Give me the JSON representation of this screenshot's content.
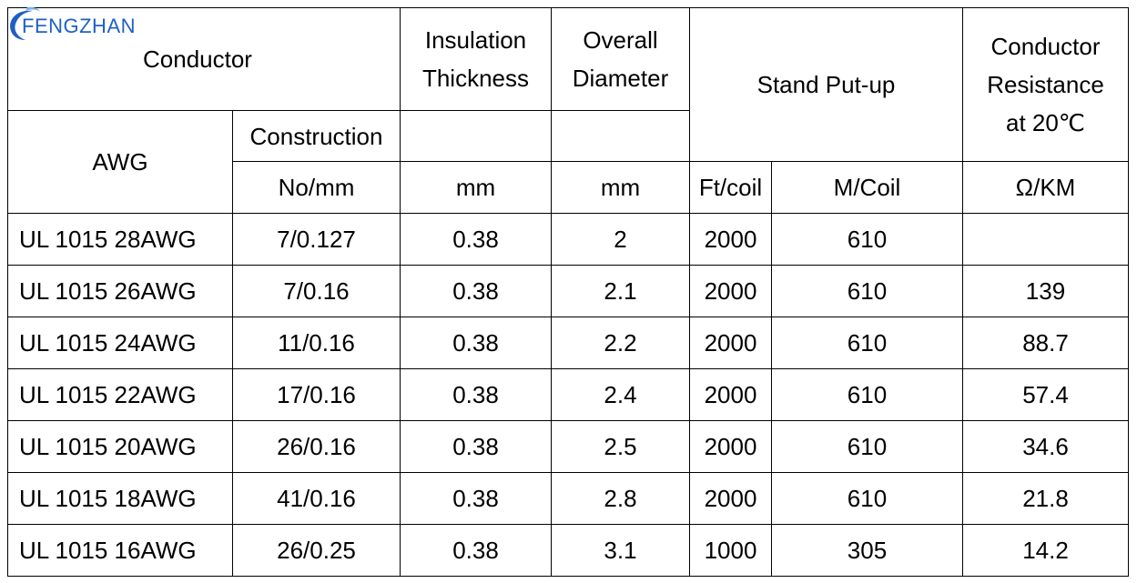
{
  "brand": {
    "logo_text": "FENGZHAN",
    "logo_color": "#1f5fc4",
    "icon": "swoosh-logo-icon"
  },
  "header": {
    "conductor": "Conductor",
    "insulation_line1": "Insulation",
    "insulation_line2": "Thickness",
    "overall_line1": "Overall",
    "overall_line2": "Diameter",
    "stand_putup": "Stand Put-up",
    "resistance_line1": "Conductor",
    "resistance_line2": "Resistance",
    "resistance_line3": "at 20℃",
    "awg": "AWG",
    "construction": "Construction",
    "unit_construction": "No/mm",
    "unit_insulation": "mm",
    "unit_diameter": "mm",
    "unit_ft": "Ft/coil",
    "unit_m": "M/Coil",
    "unit_resistance": "Ω/KM"
  },
  "rows": [
    {
      "awg": "UL 1015 28AWG",
      "construction": "7/0.127",
      "insulation": "0.38",
      "diameter": "2",
      "ft": "2000",
      "m": "610",
      "resistance": ""
    },
    {
      "awg": "UL 1015 26AWG",
      "construction": "7/0.16",
      "insulation": "0.38",
      "diameter": "2.1",
      "ft": "2000",
      "m": "610",
      "resistance": "139"
    },
    {
      "awg": "UL 1015 24AWG",
      "construction": "11/0.16",
      "insulation": "0.38",
      "diameter": "2.2",
      "ft": "2000",
      "m": "610",
      "resistance": "88.7"
    },
    {
      "awg": "UL 1015 22AWG",
      "construction": "17/0.16",
      "insulation": "0.38",
      "diameter": "2.4",
      "ft": "2000",
      "m": "610",
      "resistance": "57.4"
    },
    {
      "awg": "UL 1015 20AWG",
      "construction": "26/0.16",
      "insulation": "0.38",
      "diameter": "2.5",
      "ft": "2000",
      "m": "610",
      "resistance": "34.6"
    },
    {
      "awg": "UL 1015 18AWG",
      "construction": "41/0.16",
      "insulation": "0.38",
      "diameter": "2.8",
      "ft": "2000",
      "m": "610",
      "resistance": "21.8"
    },
    {
      "awg": "UL 1015 16AWG",
      "construction": "26/0.25",
      "insulation": "0.38",
      "diameter": "3.1",
      "ft": "1000",
      "m": "305",
      "resistance": "14.2"
    }
  ]
}
